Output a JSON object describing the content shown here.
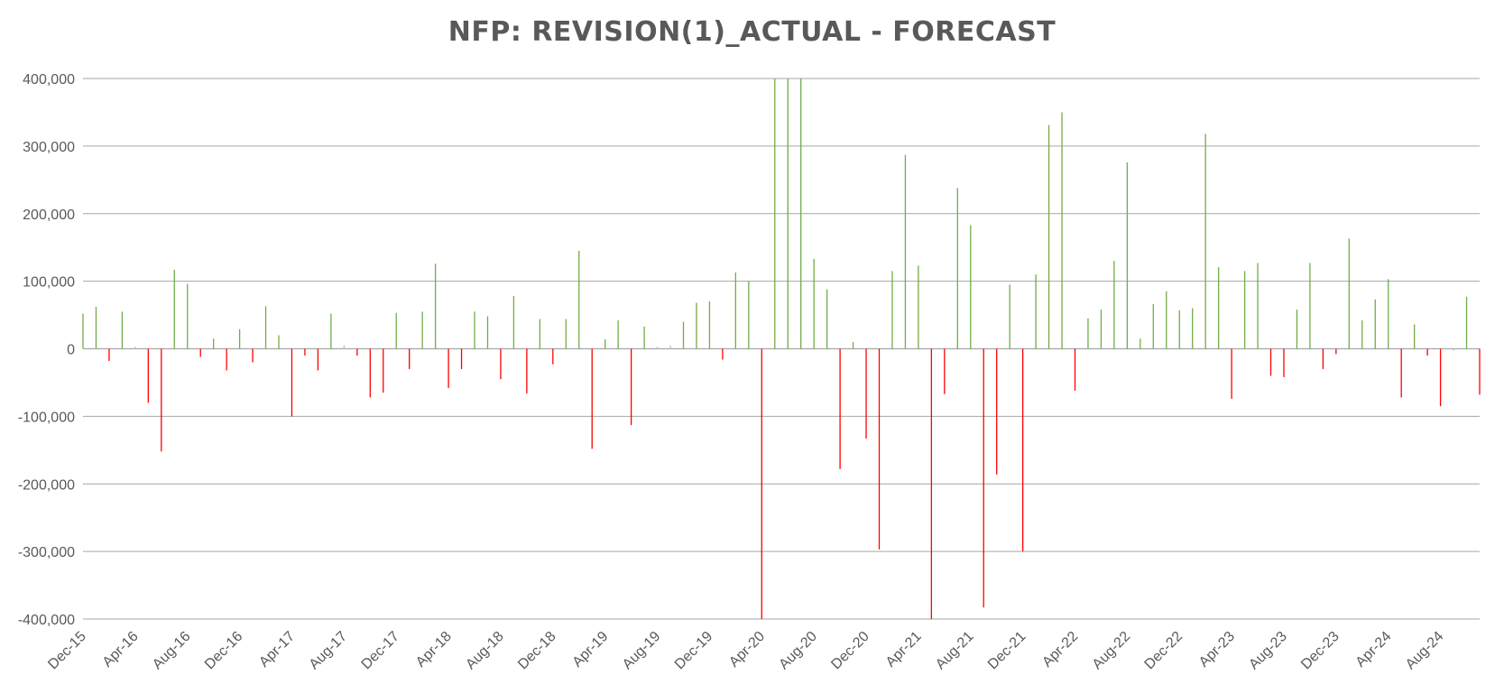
{
  "chart_data": {
    "type": "bar",
    "title": "NFP: REVISION(1)_ACTUAL - FORECAST",
    "xlabel": "",
    "ylabel": "",
    "ylim": [
      -400000,
      400000
    ],
    "y_ticks": [
      400000,
      300000,
      200000,
      100000,
      0,
      -100000,
      -200000,
      -300000,
      -400000
    ],
    "y_tick_labels": [
      "400,000",
      "300,000",
      "200,000",
      "100,000",
      "0",
      "-100,000",
      "-200,000",
      "-300,000",
      "-400,000"
    ],
    "x_tick_labels": [
      "Dec-15",
      "Apr-16",
      "Aug-16",
      "Dec-16",
      "Apr-17",
      "Aug-17",
      "Dec-17",
      "Apr-18",
      "Aug-18",
      "Dec-18",
      "Apr-19",
      "Aug-19",
      "Dec-19",
      "Apr-20",
      "Aug-20",
      "Dec-20",
      "Apr-21",
      "Aug-21",
      "Dec-21",
      "Apr-22",
      "Aug-22",
      "Dec-22",
      "Apr-23",
      "Aug-23",
      "Dec-23",
      "Apr-24",
      "Aug-24"
    ],
    "x_tick_every": 4,
    "grid": true,
    "colors": {
      "positive": "#70ad47",
      "negative": "#ff0000",
      "small": "#bfbfbf",
      "grid": "#a6a6a6",
      "text": "#595959"
    },
    "values": [
      52000,
      62000,
      -18000,
      55000,
      3000,
      -80000,
      -152000,
      117000,
      96000,
      -12000,
      15000,
      -32000,
      29000,
      -20000,
      63000,
      20000,
      -100000,
      -10000,
      -32000,
      52000,
      5000,
      -10000,
      -72000,
      -65000,
      53000,
      -30000,
      55000,
      126000,
      -58000,
      -30000,
      55000,
      48000,
      -45000,
      78000,
      -66000,
      44000,
      -23000,
      44000,
      145000,
      -148000,
      14000,
      42000,
      -113000,
      33000,
      3000,
      5000,
      40000,
      68000,
      70000,
      -16000,
      113000,
      100000,
      -400000,
      400000,
      400000,
      400000,
      133000,
      88000,
      -178000,
      10000,
      -133000,
      -297000,
      115000,
      287000,
      123000,
      -400000,
      -67000,
      238000,
      183000,
      -383000,
      -186000,
      95000,
      -300000,
      110000,
      331000,
      350000,
      -62000,
      45000,
      58000,
      130000,
      276000,
      15000,
      66000,
      85000,
      57000,
      60000,
      318000,
      121000,
      -74000,
      115000,
      127000,
      -40000,
      -42000,
      58000,
      127000,
      -30000,
      -8000,
      163000,
      42000,
      73000,
      103000,
      -72000,
      36000,
      -10000,
      -85000,
      -3000,
      77000,
      -68000
    ]
  }
}
